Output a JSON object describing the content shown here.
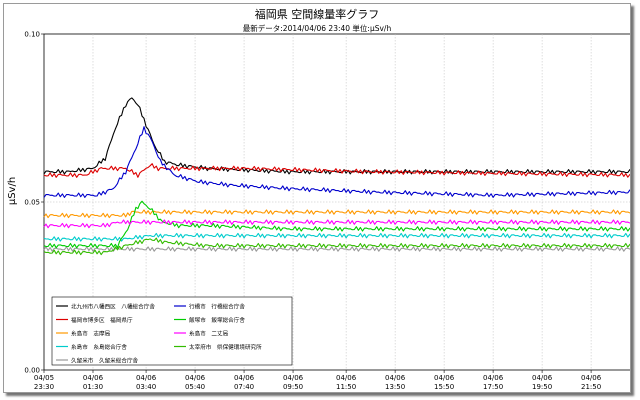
{
  "chart_data": {
    "type": "line",
    "title": "福岡県 空間線量率グラフ",
    "subtitle": "最新データ:2014/04/06 23:40  単位:μSv/h",
    "ylabel": "μSv/h",
    "xlabel": "",
    "ylim": [
      0,
      0.1
    ],
    "yticks": [
      {
        "value": 0,
        "label": "0.00"
      },
      {
        "value": 0.05,
        "label": "0.05"
      },
      {
        "value": 0.1,
        "label": "0.10"
      }
    ],
    "xlim": [
      0,
      1450
    ],
    "xticks": [
      {
        "value": 0,
        "date": "04/05",
        "time": "23:30"
      },
      {
        "value": 120,
        "date": "04/06",
        "time": "01:30"
      },
      {
        "value": 250,
        "date": "04/06",
        "time": "03:40"
      },
      {
        "value": 370,
        "date": "04/06",
        "time": "05:40"
      },
      {
        "value": 490,
        "date": "04/06",
        "time": "07:40"
      },
      {
        "value": 610,
        "date": "04/06",
        "time": "09:50"
      },
      {
        "value": 740,
        "date": "04/06",
        "time": "11:50"
      },
      {
        "value": 860,
        "date": "04/06",
        "time": "13:50"
      },
      {
        "value": 980,
        "date": "04/06",
        "time": "15:50"
      },
      {
        "value": 1100,
        "date": "04/06",
        "time": "17:50"
      },
      {
        "value": 1220,
        "date": "04/06",
        "time": "19:50"
      },
      {
        "value": 1340,
        "date": "04/06",
        "time": "21:50"
      }
    ],
    "grid": true,
    "legend_position": "bottom-left",
    "series": [
      {
        "name": "北九州市八幡西区　八幡総合庁舎",
        "color": "#000000",
        "points": [
          [
            0,
            0.059
          ],
          [
            60,
            0.059
          ],
          [
            120,
            0.06
          ],
          [
            150,
            0.063
          ],
          [
            175,
            0.072
          ],
          [
            200,
            0.079
          ],
          [
            215,
            0.081
          ],
          [
            230,
            0.079
          ],
          [
            250,
            0.073
          ],
          [
            270,
            0.067
          ],
          [
            295,
            0.062
          ],
          [
            330,
            0.061
          ],
          [
            400,
            0.06
          ],
          [
            600,
            0.059
          ],
          [
            900,
            0.059
          ],
          [
            1450,
            0.059
          ]
        ]
      },
      {
        "name": "福岡市博多区　福岡県庁",
        "color": "#dd0000",
        "points": [
          [
            0,
            0.058
          ],
          [
            100,
            0.058
          ],
          [
            140,
            0.06
          ],
          [
            200,
            0.06
          ],
          [
            230,
            0.058
          ],
          [
            260,
            0.061
          ],
          [
            280,
            0.06
          ],
          [
            320,
            0.06
          ],
          [
            500,
            0.06
          ],
          [
            800,
            0.059
          ],
          [
            1450,
            0.058
          ]
        ]
      },
      {
        "name": "糸島市　志摩局",
        "color": "#ff9900",
        "points": [
          [
            0,
            0.046
          ],
          [
            200,
            0.046
          ],
          [
            215,
            0.047
          ],
          [
            1450,
            0.047
          ]
        ]
      },
      {
        "name": "糸島市　糸島総合庁舎",
        "color": "#00cccc",
        "points": [
          [
            0,
            0.039
          ],
          [
            200,
            0.039
          ],
          [
            260,
            0.04
          ],
          [
            1450,
            0.04
          ]
        ]
      },
      {
        "name": "久留米市　久留米総合庁舎",
        "color": "#999999",
        "points": [
          [
            0,
            0.036
          ],
          [
            1450,
            0.036
          ]
        ]
      },
      {
        "name": "行橋市　行橋総合庁舎",
        "color": "#0000cc",
        "points": [
          [
            0,
            0.052
          ],
          [
            130,
            0.052
          ],
          [
            170,
            0.054
          ],
          [
            200,
            0.059
          ],
          [
            225,
            0.066
          ],
          [
            245,
            0.072
          ],
          [
            265,
            0.068
          ],
          [
            285,
            0.062
          ],
          [
            320,
            0.058
          ],
          [
            380,
            0.056
          ],
          [
            460,
            0.055
          ],
          [
            600,
            0.054
          ],
          [
            800,
            0.053
          ],
          [
            1100,
            0.052
          ],
          [
            1450,
            0.053
          ]
        ]
      },
      {
        "name": "飯塚市　飯塚総合庁舎",
        "color": "#00cc00",
        "points": [
          [
            0,
            0.037
          ],
          [
            180,
            0.037
          ],
          [
            205,
            0.042
          ],
          [
            225,
            0.048
          ],
          [
            240,
            0.05
          ],
          [
            260,
            0.048
          ],
          [
            290,
            0.044
          ],
          [
            330,
            0.043
          ],
          [
            400,
            0.043
          ],
          [
            600,
            0.042
          ],
          [
            900,
            0.042
          ],
          [
            1200,
            0.042
          ],
          [
            1450,
            0.042
          ]
        ]
      },
      {
        "name": "糸島市　二丈局",
        "color": "#ff00ff",
        "points": [
          [
            0,
            0.043
          ],
          [
            150,
            0.043
          ],
          [
            180,
            0.044
          ],
          [
            1450,
            0.044
          ]
        ]
      },
      {
        "name": "太宰府市　県保健環境研究所",
        "color": "#33bb00",
        "points": [
          [
            0,
            0.035
          ],
          [
            150,
            0.035
          ],
          [
            200,
            0.037
          ],
          [
            260,
            0.039
          ],
          [
            300,
            0.038
          ],
          [
            400,
            0.037
          ],
          [
            800,
            0.037
          ],
          [
            1200,
            0.037
          ],
          [
            1450,
            0.037
          ]
        ]
      }
    ]
  }
}
